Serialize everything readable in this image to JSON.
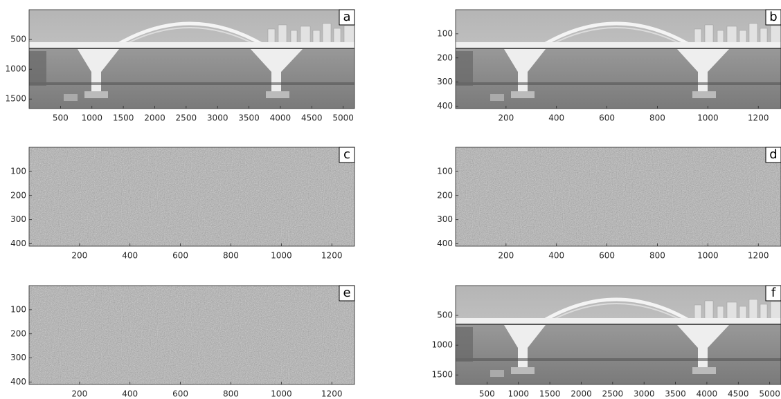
{
  "chart_data": [
    {
      "type": "image",
      "label": "a",
      "xlim": [
        0,
        5180
      ],
      "ylim": [
        0,
        1660
      ],
      "xticks": [
        500,
        1000,
        1500,
        2000,
        2500,
        3000,
        3500,
        4000,
        4500,
        5000
      ],
      "yticks": [
        500,
        1000,
        1500
      ]
    },
    {
      "type": "image",
      "label": "b",
      "xlim": [
        0,
        1290
      ],
      "ylim": [
        0,
        410
      ],
      "xticks": [
        200,
        400,
        600,
        800,
        1000,
        1200
      ],
      "yticks": [
        100,
        200,
        300,
        400
      ]
    },
    {
      "type": "image",
      "label": "c",
      "xlim": [
        0,
        1290
      ],
      "ylim": [
        0,
        410
      ],
      "xticks": [
        200,
        400,
        600,
        800,
        1000,
        1200
      ],
      "yticks": [
        100,
        200,
        300,
        400
      ]
    },
    {
      "type": "image",
      "label": "d",
      "xlim": [
        0,
        1290
      ],
      "ylim": [
        0,
        410
      ],
      "xticks": [
        200,
        400,
        600,
        800,
        1000,
        1200
      ],
      "yticks": [
        100,
        200,
        300,
        400
      ]
    },
    {
      "type": "image",
      "label": "e",
      "xlim": [
        0,
        1290
      ],
      "ylim": [
        0,
        410
      ],
      "xticks": [
        200,
        400,
        600,
        800,
        1000,
        1200
      ],
      "yticks": [
        100,
        200,
        300,
        400
      ]
    },
    {
      "type": "image",
      "label": "f",
      "xlim": [
        0,
        5180
      ],
      "ylim": [
        0,
        1660
      ],
      "xticks": [
        500,
        1000,
        1500,
        2000,
        2500,
        3000,
        3500,
        4000,
        4500,
        5000
      ],
      "yticks": [
        500,
        1000,
        1500
      ]
    }
  ]
}
